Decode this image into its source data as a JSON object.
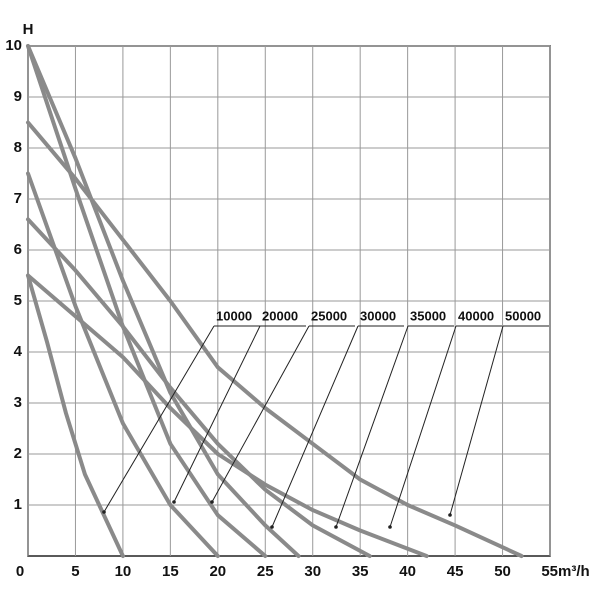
{
  "chart_data": {
    "type": "line",
    "ylabel": "H",
    "xlabel": "m³/h",
    "xlim": [
      0,
      55
    ],
    "xticks": [
      0,
      5,
      10,
      15,
      20,
      25,
      30,
      35,
      40,
      45,
      50,
      55
    ],
    "ylim": [
      0,
      10
    ],
    "yticks": [
      1,
      2,
      3,
      4,
      5,
      6,
      7,
      8,
      9,
      10
    ],
    "grid": true,
    "series": [
      {
        "name": "10000",
        "color": "#8a8a8a",
        "x": [
          0,
          2,
          4,
          6,
          8,
          10
        ],
        "values": [
          5.5,
          4.2,
          2.8,
          1.6,
          0.8,
          0
        ]
      },
      {
        "name": "20000",
        "color": "#8a8a8a",
        "x": [
          0,
          5,
          10,
          15,
          20
        ],
        "values": [
          7.5,
          4.9,
          2.6,
          1.0,
          0
        ]
      },
      {
        "name": "25000",
        "color": "#8a8a8a",
        "x": [
          0,
          5,
          10,
          15,
          20,
          25
        ],
        "values": [
          10,
          7.2,
          4.5,
          2.2,
          0.8,
          0
        ]
      },
      {
        "name": "30000",
        "color": "#8a8a8a",
        "x": [
          0,
          5,
          10,
          15,
          20,
          25,
          28.5
        ],
        "values": [
          10,
          7.8,
          5.4,
          3.2,
          1.6,
          0.6,
          0
        ]
      },
      {
        "name": "35000",
        "color": "#8a8a8a",
        "x": [
          0,
          5,
          10,
          15,
          20,
          25,
          30,
          36
        ],
        "values": [
          6.6,
          5.6,
          4.5,
          3.3,
          2.2,
          1.3,
          0.6,
          0
        ]
      },
      {
        "name": "40000",
        "color": "#8a8a8a",
        "x": [
          0,
          10,
          15,
          20,
          25,
          30,
          35,
          42
        ],
        "values": [
          5.5,
          3.9,
          2.9,
          2.0,
          1.4,
          0.9,
          0.5,
          0
        ]
      },
      {
        "name": "50000",
        "color": "#8a8a8a",
        "x": [
          0,
          5,
          10,
          15,
          20,
          25,
          30,
          35,
          40,
          45,
          52
        ],
        "values": [
          8.5,
          7.4,
          6.2,
          5.0,
          3.7,
          2.9,
          2.2,
          1.5,
          1.0,
          0.6,
          0
        ]
      }
    ]
  }
}
